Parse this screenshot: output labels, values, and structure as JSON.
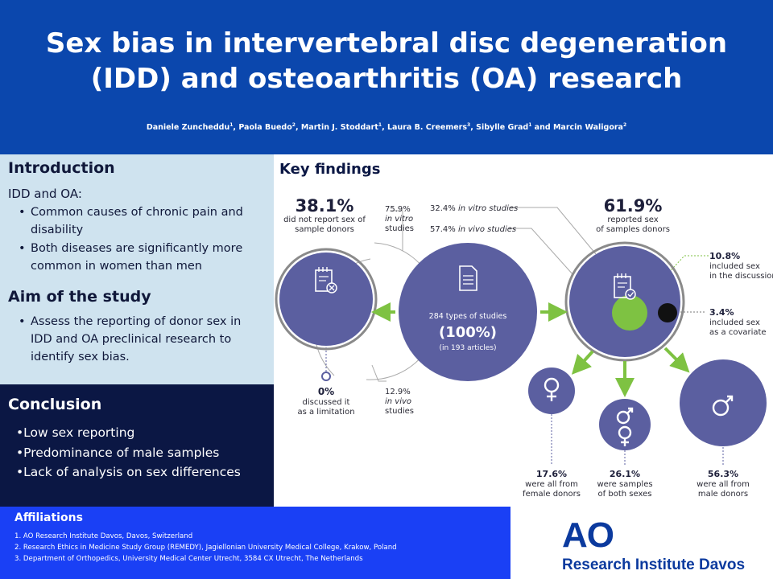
{
  "header": {
    "title_line1": "Sex bias in intervertebral disc degeneration",
    "title_line2": "(IDD) and osteoarthritis (OA) research",
    "authors": [
      {
        "name": "Daniele Zuncheddu",
        "sup": "1",
        "sep": ", "
      },
      {
        "name": "Paola Buedo",
        "sup": "2",
        "sep": ", "
      },
      {
        "name": "Martin J. Stoddart",
        "sup": "1",
        "sep": ", "
      },
      {
        "name": "Laura B. Creemers",
        "sup": "3",
        "sep": ", "
      },
      {
        "name": "Sibylle Grad",
        "sup": "1",
        "sep": " and "
      },
      {
        "name": "Marcin Waligora",
        "sup": "2",
        "sep": ""
      }
    ]
  },
  "introduction": {
    "heading": "Introduction",
    "lead": "IDD and OA:",
    "bullets": [
      "Common causes of chronic pain and disability",
      "Both diseases are significantly more common in women than men"
    ]
  },
  "aim": {
    "heading": "Aim of the study",
    "bullets": [
      "Assess the reporting of donor sex in IDD and OA preclinical research to identify sex bias."
    ]
  },
  "conclusion": {
    "heading": "Conclusion",
    "bullets": [
      "Low sex reporting",
      "Predominance of male samples",
      "Lack of analysis on sex differences"
    ]
  },
  "affiliations": {
    "heading": "Affiliations",
    "items": [
      "1. AO Research Institute Davos, Davos, Switzerland",
      "2. Research Ethics in Medicine Study Group (REMEDY), Jagiellonian University Medical College, Krakow, Poland",
      "3. Department of Orthopedics, University Medical Center Utrecht, 3584 CX Utrecht, The Netherlands"
    ]
  },
  "logo": {
    "mark": "AO",
    "text": "Research Institute Davos"
  },
  "key_findings": {
    "heading": "Key findings",
    "not_reported": {
      "pct": "38.1%",
      "line1": "did not report sex of",
      "line2": "sample donors"
    },
    "not_reported_invitro": {
      "pct": "75.9%",
      "line1": "in vitro",
      "line2": "studies"
    },
    "center": {
      "line1": "284 types of studies",
      "pct": "(100%)",
      "line2": "(in 193 articles)"
    },
    "reported": {
      "pct": "61.9%",
      "line1": "reported sex",
      "line2": "of samples donors"
    },
    "reported_invitro": {
      "pct": "32.4%",
      "label": "in vitro studies"
    },
    "reported_invivo": {
      "pct": "57.4%",
      "label": "in vivo studies"
    },
    "discussion": {
      "pct": "10.8%",
      "line1": "included sex",
      "line2": "in the discussion"
    },
    "covariate": {
      "pct": "3.4%",
      "line1": "included sex",
      "line2": "as a covariate"
    },
    "limitation": {
      "pct": "0%",
      "line1": "discussed it",
      "line2": "as a limitation"
    },
    "not_reported_invivo": {
      "pct": "12.9%",
      "line1": "in vivo",
      "line2": "studies"
    },
    "female": {
      "pct": "17.6%",
      "line1": "were all from",
      "line2": "female donors"
    },
    "both": {
      "pct": "26.1%",
      "line1": "were samples",
      "line2": "of both sexes"
    },
    "male": {
      "pct": "56.3%",
      "line1": "were all from",
      "line2": "male donors"
    }
  },
  "colors": {
    "header": "#0b47ad",
    "intro_bg": "#cfe3ef",
    "conclusion_bg": "#0b1744",
    "footer": "#1a40f5",
    "circle": "#5b5fa0",
    "arrow": "#7ec242"
  }
}
